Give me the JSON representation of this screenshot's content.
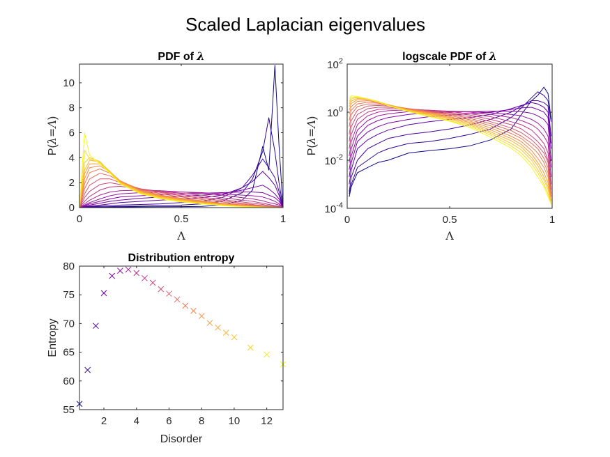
{
  "figure": {
    "title": "Scaled Laplacian eigenvalues"
  },
  "chart_data": [
    {
      "id": "pdf",
      "type": "line",
      "title_text": "PDF of ",
      "title_symbol": "λ",
      "xlabel": "Λ",
      "ylabel_prefix": "P(",
      "ylabel_expr": "λ=Λ",
      "ylabel_suffix": ")",
      "xlim": [
        0,
        1
      ],
      "ylim": [
        0,
        11.5
      ],
      "xticks": [
        0,
        0.5,
        1
      ],
      "xticklabels": [
        "0",
        "0.5",
        "1"
      ],
      "yticks": [
        0,
        2,
        4,
        6,
        8,
        10
      ],
      "yticklabels": [
        "0",
        "2",
        "4",
        "6",
        "8",
        "10"
      ],
      "grid": false,
      "legend": "none",
      "x": [
        0,
        0.025,
        0.05,
        0.1,
        0.15,
        0.2,
        0.3,
        0.4,
        0.5,
        0.6,
        0.7,
        0.8,
        0.85,
        0.9,
        0.93,
        0.96,
        0.98,
        1.0
      ],
      "series_colors": [
        "#0d0887",
        "#2c0594",
        "#46039f",
        "#5c01a6",
        "#7201a8",
        "#8606a6",
        "#9a169f",
        "#ac2694",
        "#bd3786",
        "#cc4778",
        "#d8576b",
        "#e4695e",
        "#ed7953",
        "#f58b47",
        "#fa9e3b",
        "#fdb32f",
        "#fbc82e",
        "#f5dc2a",
        "#f0f921"
      ],
      "series": [
        {
          "values": [
            0,
            0.01,
            0.02,
            0.03,
            0.04,
            0.05,
            0.06,
            0.07,
            0.08,
            0.1,
            0.2,
            0.6,
            1.4,
            4.9,
            3.0,
            11.4,
            5.0,
            0
          ]
        },
        {
          "values": [
            0,
            0.02,
            0.04,
            0.06,
            0.08,
            0.1,
            0.12,
            0.15,
            0.2,
            0.3,
            0.5,
            1.2,
            2.3,
            4.5,
            7.2,
            4.5,
            2.0,
            0
          ]
        },
        {
          "values": [
            0,
            0.04,
            0.08,
            0.12,
            0.16,
            0.2,
            0.25,
            0.3,
            0.4,
            0.5,
            0.8,
            1.6,
            2.6,
            3.9,
            3.2,
            2.4,
            1.3,
            0
          ]
        },
        {
          "values": [
            0,
            0.06,
            0.12,
            0.2,
            0.3,
            0.4,
            0.5,
            0.6,
            0.7,
            0.8,
            1.0,
            1.6,
            2.1,
            2.9,
            2.4,
            1.8,
            1.0,
            0
          ]
        },
        {
          "values": [
            0,
            0.1,
            0.2,
            0.35,
            0.5,
            0.6,
            0.75,
            0.85,
            0.9,
            1.0,
            1.1,
            1.4,
            1.6,
            1.8,
            1.5,
            1.1,
            0.7,
            0
          ]
        },
        {
          "values": [
            0,
            0.15,
            0.3,
            0.5,
            0.7,
            0.85,
            0.95,
            1.05,
            1.1,
            1.15,
            1.2,
            1.25,
            1.25,
            1.2,
            1.0,
            0.8,
            0.5,
            0
          ]
        },
        {
          "values": [
            0,
            0.2,
            0.4,
            0.7,
            0.95,
            1.1,
            1.2,
            1.25,
            1.25,
            1.2,
            1.1,
            1.0,
            0.95,
            0.85,
            0.7,
            0.5,
            0.3,
            0
          ]
        },
        {
          "values": [
            0,
            0.3,
            0.6,
            1.0,
            1.25,
            1.35,
            1.4,
            1.35,
            1.25,
            1.15,
            1.0,
            0.8,
            0.7,
            0.55,
            0.4,
            0.3,
            0.2,
            0
          ]
        },
        {
          "values": [
            0,
            0.5,
            0.9,
            1.4,
            1.65,
            1.7,
            1.5,
            1.3,
            1.15,
            1.0,
            0.8,
            0.6,
            0.5,
            0.35,
            0.25,
            0.15,
            0.1,
            0
          ]
        },
        {
          "values": [
            0,
            0.8,
            1.3,
            1.85,
            2.0,
            1.85,
            1.5,
            1.25,
            1.05,
            0.85,
            0.65,
            0.45,
            0.35,
            0.25,
            0.15,
            0.1,
            0.05,
            0
          ]
        },
        {
          "values": [
            0,
            1.1,
            1.8,
            2.3,
            2.3,
            2.0,
            1.5,
            1.2,
            0.95,
            0.75,
            0.55,
            0.35,
            0.25,
            0.15,
            0.1,
            0.05,
            0.02,
            0
          ]
        },
        {
          "values": [
            0,
            1.5,
            2.3,
            2.75,
            2.55,
            2.1,
            1.45,
            1.1,
            0.85,
            0.65,
            0.45,
            0.28,
            0.2,
            0.12,
            0.07,
            0.04,
            0.02,
            0
          ]
        },
        {
          "values": [
            0,
            1.9,
            2.8,
            3.1,
            2.75,
            2.15,
            1.4,
            1.0,
            0.75,
            0.55,
            0.35,
            0.22,
            0.15,
            0.08,
            0.05,
            0.03,
            0.01,
            0
          ]
        },
        {
          "values": [
            0,
            2.3,
            3.2,
            3.35,
            2.85,
            2.15,
            1.35,
            0.95,
            0.7,
            0.5,
            0.3,
            0.18,
            0.12,
            0.06,
            0.04,
            0.02,
            0.01,
            0
          ]
        },
        {
          "values": [
            0,
            2.7,
            3.5,
            3.5,
            2.9,
            2.1,
            1.3,
            0.9,
            0.65,
            0.45,
            0.28,
            0.15,
            0.1,
            0.05,
            0.03,
            0.02,
            0.01,
            0
          ]
        },
        {
          "values": [
            0,
            3.0,
            3.8,
            3.65,
            2.9,
            2.05,
            1.25,
            0.85,
            0.6,
            0.4,
            0.25,
            0.12,
            0.08,
            0.04,
            0.02,
            0.01,
            0.01,
            0
          ]
        },
        {
          "values": [
            0,
            3.6,
            4.0,
            3.7,
            2.85,
            2.0,
            1.2,
            0.8,
            0.55,
            0.35,
            0.2,
            0.1,
            0.06,
            0.03,
            0.02,
            0.01,
            0.0,
            0
          ]
        },
        {
          "values": [
            0,
            4.6,
            3.9,
            3.6,
            2.8,
            1.95,
            1.15,
            0.75,
            0.5,
            0.32,
            0.18,
            0.08,
            0.05,
            0.02,
            0.01,
            0.01,
            0.0,
            0
          ]
        },
        {
          "values": [
            0,
            6.0,
            4.2,
            3.5,
            2.75,
            1.9,
            1.1,
            0.7,
            0.45,
            0.3,
            0.15,
            0.07,
            0.04,
            0.02,
            0.01,
            0.0,
            0.0,
            0
          ]
        }
      ]
    },
    {
      "id": "logpdf",
      "type": "line",
      "title_text": "logscale PDF of ",
      "title_symbol": "λ",
      "xlabel": "Λ",
      "ylabel_prefix": "P(",
      "ylabel_expr": "λ=Λ",
      "ylabel_suffix": ")",
      "xlim": [
        0,
        1
      ],
      "ylim": [
        0.0001,
        100
      ],
      "yscale": "log",
      "xticks": [
        0,
        0.5,
        1
      ],
      "xticklabels": [
        "0",
        "0.5",
        "1"
      ],
      "yticks": [
        0.0001,
        0.01,
        1,
        100
      ],
      "ytick_base": [
        "10",
        "10",
        "10",
        "10"
      ],
      "ytick_exp": [
        "-4",
        "-2",
        "0",
        "2"
      ],
      "grid": false,
      "legend": "none",
      "x": [
        0.01,
        0.02,
        0.05,
        0.1,
        0.15,
        0.2,
        0.3,
        0.4,
        0.5,
        0.6,
        0.7,
        0.8,
        0.85,
        0.9,
        0.93,
        0.96,
        0.98,
        0.995
      ],
      "series_colors": [
        "#0d0887",
        "#2c0594",
        "#46039f",
        "#5c01a6",
        "#7201a8",
        "#8606a6",
        "#9a169f",
        "#ac2694",
        "#bd3786",
        "#cc4778",
        "#d8576b",
        "#e4695e",
        "#ed7953",
        "#f58b47",
        "#fa9e3b",
        "#fdb32f",
        "#fbc82e",
        "#f5dc2a",
        "#f0f921"
      ],
      "series": [
        {
          "values": [
            0.0003,
            0.0008,
            0.003,
            0.005,
            0.008,
            0.01,
            0.02,
            0.025,
            0.03,
            0.04,
            0.07,
            0.2,
            0.8,
            3,
            5,
            11,
            6,
            0.5
          ]
        },
        {
          "values": [
            0.0004,
            0.001,
            0.005,
            0.01,
            0.02,
            0.03,
            0.05,
            0.06,
            0.08,
            0.12,
            0.2,
            0.6,
            1.5,
            4,
            7,
            5,
            3,
            0.4
          ]
        },
        {
          "values": [
            0.0005,
            0.002,
            0.01,
            0.03,
            0.05,
            0.08,
            0.12,
            0.15,
            0.2,
            0.3,
            0.5,
            1.0,
            1.8,
            3,
            3,
            2.5,
            1.8,
            0.1
          ]
        },
        {
          "values": [
            0.001,
            0.004,
            0.03,
            0.07,
            0.12,
            0.18,
            0.3,
            0.4,
            0.5,
            0.6,
            0.8,
            1.4,
            1.9,
            2.5,
            2.2,
            1.6,
            1.0,
            0.05
          ]
        },
        {
          "values": [
            0.002,
            0.008,
            0.06,
            0.15,
            0.25,
            0.35,
            0.5,
            0.65,
            0.75,
            0.85,
            1.0,
            1.3,
            1.5,
            1.6,
            1.3,
            1.0,
            0.6,
            0.03
          ]
        },
        {
          "values": [
            0.004,
            0.015,
            0.1,
            0.28,
            0.45,
            0.6,
            0.8,
            0.95,
            1.0,
            1.05,
            1.1,
            1.1,
            1.05,
            0.9,
            0.7,
            0.5,
            0.3,
            0.01
          ]
        },
        {
          "values": [
            0.008,
            0.03,
            0.18,
            0.45,
            0.7,
            0.85,
            1.05,
            1.1,
            1.1,
            1.05,
            0.95,
            0.8,
            0.7,
            0.5,
            0.35,
            0.2,
            0.1,
            0.005
          ]
        },
        {
          "values": [
            0.015,
            0.06,
            0.3,
            0.7,
            1.0,
            1.15,
            1.25,
            1.2,
            1.1,
            1.0,
            0.8,
            0.6,
            0.45,
            0.3,
            0.2,
            0.1,
            0.05,
            0.002
          ]
        },
        {
          "values": [
            0.03,
            0.12,
            0.5,
            1.0,
            1.3,
            1.4,
            1.35,
            1.2,
            1.05,
            0.85,
            0.65,
            0.4,
            0.3,
            0.18,
            0.1,
            0.05,
            0.02,
            0.001
          ]
        },
        {
          "values": [
            0.06,
            0.25,
            0.8,
            1.4,
            1.6,
            1.6,
            1.4,
            1.15,
            0.95,
            0.75,
            0.5,
            0.3,
            0.2,
            0.1,
            0.06,
            0.03,
            0.01,
            0.0006
          ]
        },
        {
          "values": [
            0.12,
            0.45,
            1.2,
            1.8,
            1.9,
            1.8,
            1.4,
            1.1,
            0.85,
            0.65,
            0.4,
            0.22,
            0.14,
            0.07,
            0.04,
            0.02,
            0.008,
            0.0004
          ]
        },
        {
          "values": [
            0.25,
            0.8,
            1.7,
            2.2,
            2.2,
            1.9,
            1.4,
            1.05,
            0.8,
            0.55,
            0.33,
            0.17,
            0.1,
            0.05,
            0.03,
            0.012,
            0.005,
            0.0003
          ]
        },
        {
          "values": [
            0.45,
            1.2,
            2.2,
            2.6,
            2.4,
            2.0,
            1.35,
            1.0,
            0.72,
            0.48,
            0.27,
            0.13,
            0.08,
            0.035,
            0.02,
            0.008,
            0.003,
            0.0003
          ]
        },
        {
          "values": [
            0.8,
            1.7,
            2.8,
            3.0,
            2.6,
            2.05,
            1.3,
            0.95,
            0.65,
            0.42,
            0.22,
            0.1,
            0.06,
            0.025,
            0.012,
            0.005,
            0.002,
            0.0002
          ]
        },
        {
          "values": [
            1.2,
            2.3,
            3.3,
            3.3,
            2.7,
            2.05,
            1.25,
            0.88,
            0.6,
            0.37,
            0.18,
            0.08,
            0.045,
            0.018,
            0.008,
            0.003,
            0.0012,
            0.0002
          ]
        },
        {
          "values": [
            1.7,
            2.9,
            3.7,
            3.5,
            2.8,
            2.0,
            1.2,
            0.82,
            0.55,
            0.33,
            0.15,
            0.065,
            0.035,
            0.013,
            0.006,
            0.002,
            0.0008,
            0.0002
          ]
        },
        {
          "values": [
            2.2,
            3.5,
            4.1,
            3.6,
            2.8,
            1.95,
            1.15,
            0.76,
            0.5,
            0.29,
            0.13,
            0.05,
            0.027,
            0.01,
            0.004,
            0.0015,
            0.0006,
            0.00015
          ]
        },
        {
          "values": [
            2.8,
            4.1,
            4.3,
            3.6,
            2.75,
            1.9,
            1.1,
            0.7,
            0.45,
            0.26,
            0.11,
            0.04,
            0.02,
            0.007,
            0.003,
            0.001,
            0.0004,
            0.00015
          ]
        },
        {
          "values": [
            3.5,
            4.8,
            4.5,
            3.5,
            2.7,
            1.85,
            1.05,
            0.65,
            0.42,
            0.23,
            0.09,
            0.032,
            0.015,
            0.005,
            0.002,
            0.0008,
            0.0003,
            0.00015
          ]
        }
      ]
    },
    {
      "id": "entropy",
      "type": "scatter",
      "title": "Distribution entropy",
      "xlabel": "Disorder",
      "ylabel": "Entropy",
      "xlim": [
        0.5,
        13
      ],
      "ylim": [
        55,
        80
      ],
      "xticks": [
        2,
        4,
        6,
        8,
        10,
        12
      ],
      "xticklabels": [
        "2",
        "4",
        "6",
        "8",
        "10",
        "12"
      ],
      "yticks": [
        55,
        60,
        65,
        70,
        75,
        80
      ],
      "yticklabels": [
        "55",
        "60",
        "65",
        "70",
        "75",
        "80"
      ],
      "marker": "x",
      "grid": false,
      "legend": "none",
      "x": [
        0.5,
        1,
        1.5,
        2,
        2.5,
        3,
        3.5,
        4,
        4.5,
        5,
        5.5,
        6,
        6.5,
        7,
        7.5,
        8,
        8.5,
        9,
        9.5,
        10,
        11,
        12,
        13
      ],
      "y": [
        56.0,
        61.9,
        69.6,
        75.3,
        78.3,
        79.2,
        79.4,
        78.8,
        77.9,
        77.1,
        76.0,
        75.2,
        74.2,
        73.1,
        72.2,
        71.3,
        70.1,
        69.3,
        68.4,
        67.6,
        65.8,
        64.6,
        62.9
      ],
      "point_colors": [
        "#0d0887",
        "#30069a",
        "#4c02a1",
        "#6500a7",
        "#7e03a8",
        "#8f0da4",
        "#a11b9b",
        "#b12a90",
        "#bd3786",
        "#c9447a",
        "#d35171",
        "#dc5e66",
        "#e56b5d",
        "#eb7655",
        "#f2844b",
        "#f68f44",
        "#f99b3e",
        "#fca636",
        "#fdb42f",
        "#fdc028",
        "#fbd124",
        "#f6e826",
        "#f0f921"
      ]
    }
  ]
}
